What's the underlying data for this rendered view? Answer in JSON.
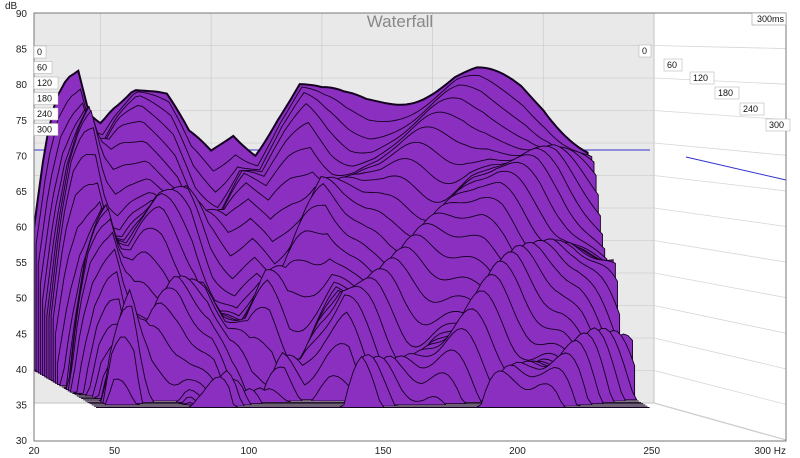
{
  "chart_data": {
    "type": "area",
    "title": "Waterfall",
    "ylabel": "dB",
    "x_unit": "Hz",
    "y_unit": "dB",
    "time_unit": "ms",
    "xlim": [
      20,
      300
    ],
    "ylim": [
      30,
      90
    ],
    "x_ticks": [
      "20",
      "50",
      "100",
      "150",
      "200",
      "250",
      "300 Hz"
    ],
    "y_ticks": [
      "30",
      "35",
      "40",
      "45",
      "50",
      "55",
      "60",
      "65",
      "70",
      "75",
      "80",
      "85",
      "90"
    ],
    "time_ticks_left": [
      "0",
      "60",
      "120",
      "180",
      "240",
      "300"
    ],
    "time_ticks_right": [
      "0",
      "60",
      "120",
      "180",
      "240",
      "300"
    ],
    "time_label_corner": "300ms",
    "slice_count": 30,
    "fill_color": "#8a2fc0",
    "line_color": "#140020",
    "grid": true,
    "front_slice_response": {
      "x": [
        20,
        25,
        30,
        35,
        40,
        45,
        50,
        55,
        60,
        65,
        70,
        75,
        80,
        85,
        90,
        100,
        110,
        120,
        130,
        140,
        150,
        160,
        170,
        180,
        190,
        200,
        210,
        220,
        230,
        240,
        250,
        260,
        270
      ],
      "y": [
        55,
        68,
        76,
        80,
        82,
        76,
        75,
        77,
        78,
        79,
        78,
        77,
        76,
        73,
        70,
        68,
        72,
        70,
        75,
        79,
        77,
        76,
        76,
        77,
        78,
        79,
        80,
        80,
        79,
        78,
        76,
        73,
        70
      ]
    }
  }
}
